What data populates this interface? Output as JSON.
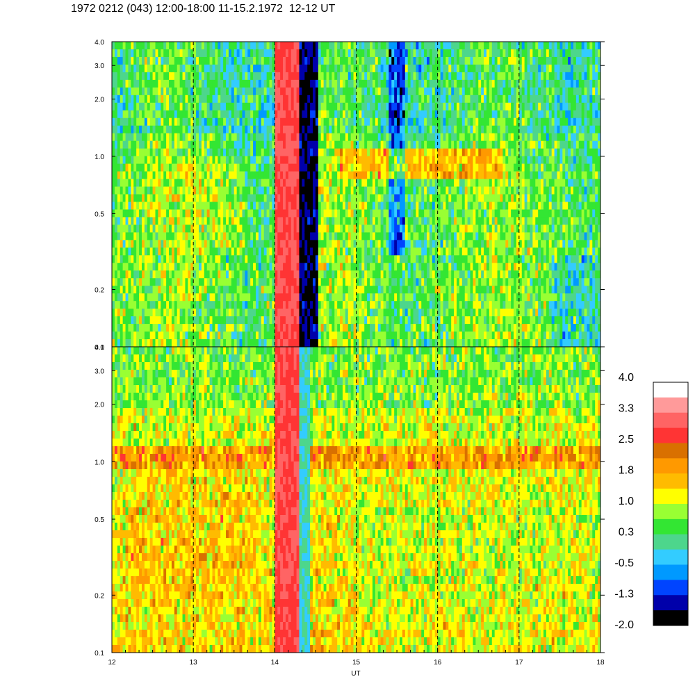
{
  "title": "1972 0212 (043) 12:00-18:00 11-15.2.1972  12-12 UT",
  "chart_data": {
    "type": "heatmap",
    "title": "1972 0212 (043) 12:00-18:00 11-15.2.1972  12-12 UT",
    "xlabel": "UT",
    "x_ticks": [
      "12",
      "13",
      "14",
      "15",
      "16",
      "17",
      "18"
    ],
    "xlim": [
      12,
      18
    ],
    "dashed_hours": [
      13,
      14,
      15,
      16,
      17
    ],
    "panels": [
      {
        "name": "upper",
        "ylim": [
          0.1,
          4.0
        ],
        "yscale": "log",
        "y_ticks": [
          "0.1",
          "0.2",
          "0.5",
          "1.0",
          "2.0",
          "3.0",
          "4.0"
        ],
        "y_tick_values": [
          0.1,
          0.2,
          0.5,
          1.0,
          2.0,
          3.0,
          4.0
        ],
        "dominant_level": "0.3 to 1.0",
        "events": [
          {
            "x_range": [
              14.0,
              14.3
            ],
            "level": "2.5 to 3.3"
          },
          {
            "x_range": [
              14.3,
              14.55
            ],
            "level": "-2.0 to -0.5"
          },
          {
            "x_range": [
              14.8,
              16.8
            ],
            "y_range": [
              0.75,
              1.1
            ],
            "level": "1.4 to 1.8"
          }
        ]
      },
      {
        "name": "lower",
        "ylim": [
          0.1,
          4.0
        ],
        "yscale": "log",
        "y_ticks": [
          "0.1",
          "0.2",
          "0.5",
          "1.0",
          "2.0",
          "3.0",
          "4.0"
        ],
        "y_tick_values": [
          0.1,
          0.2,
          0.5,
          1.0,
          2.0,
          3.0,
          4.0
        ],
        "dominant_level": "1.0 to 2.0",
        "events": [
          {
            "x_range": [
              14.0,
              14.3
            ],
            "level": "2.5 to 3.3"
          },
          {
            "x_range": [
              14.3,
              14.45
            ],
            "level": "-0.5 to 0.3"
          },
          {
            "x_range": [
              12.0,
              18.0
            ],
            "y_range": [
              0.9,
              1.2
            ],
            "level": "1.8 to 2.2"
          }
        ]
      }
    ],
    "colorbar": {
      "tick_labels": [
        "4.0",
        "3.3",
        "2.5",
        "1.8",
        "1.0",
        "0.3",
        "-0.5",
        "-1.3",
        "-2.0"
      ],
      "colors": [
        "#ffffff",
        "#ff9a9a",
        "#ff6464",
        "#ff3434",
        "#d97000",
        "#ff9900",
        "#ffbb00",
        "#ffff00",
        "#99ff33",
        "#33e633",
        "#4dd68c",
        "#33ccff",
        "#0099ff",
        "#0044ff",
        "#0000aa",
        "#000000"
      ]
    }
  }
}
